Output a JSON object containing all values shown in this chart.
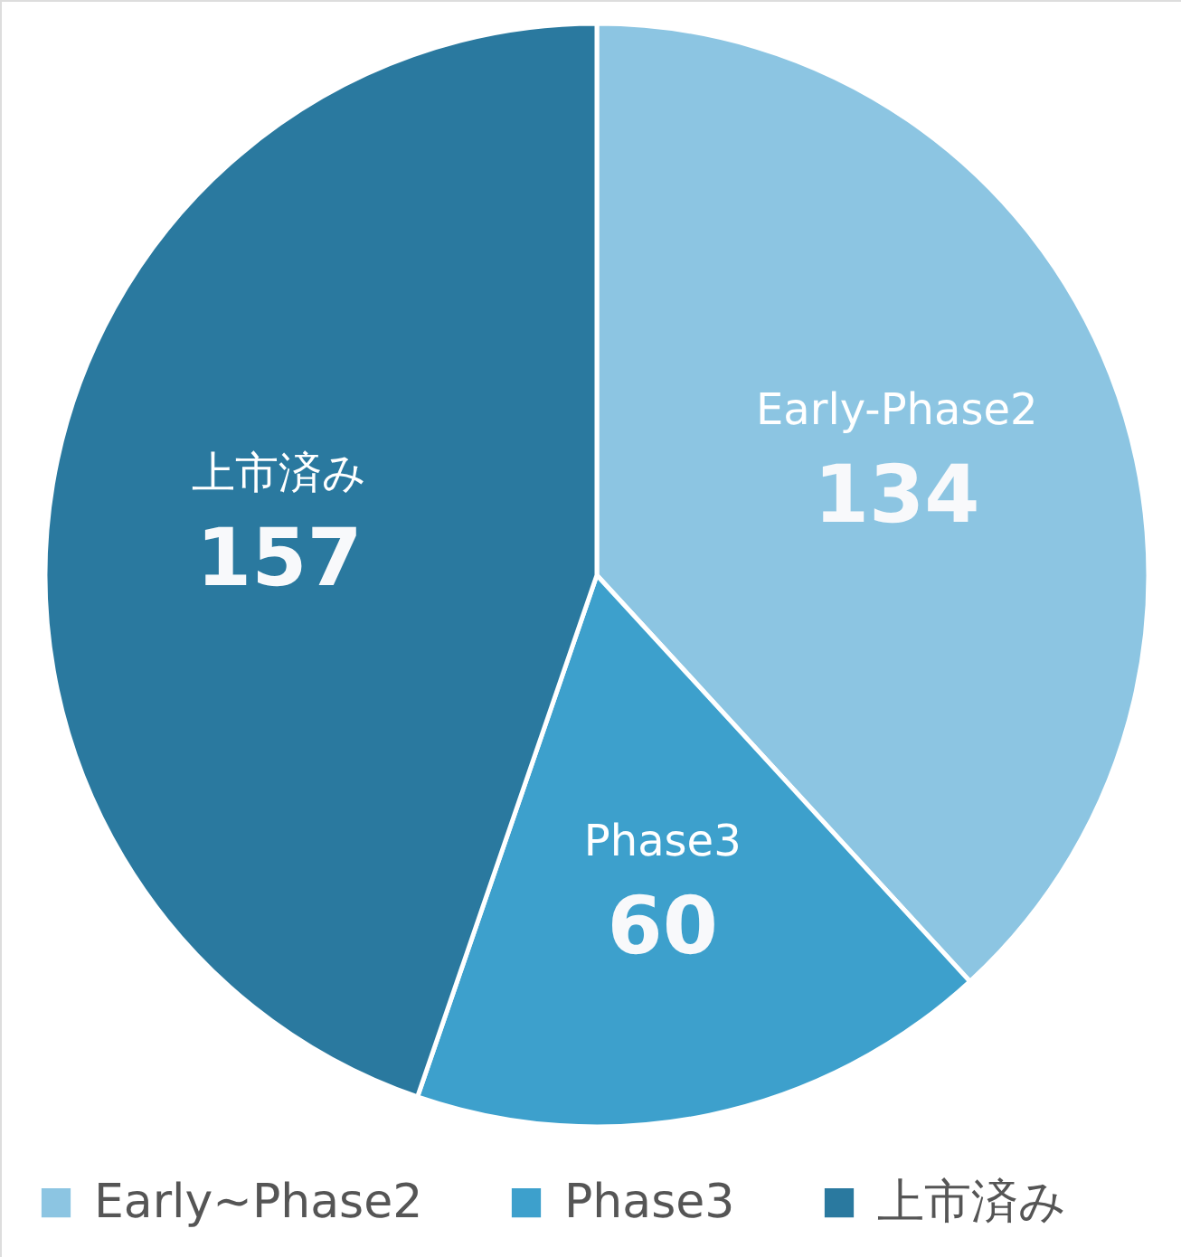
{
  "chart_data": {
    "type": "pie",
    "categories": [
      "Early~Phase2",
      "Phase3",
      "上市済み"
    ],
    "values": [
      134,
      60,
      157
    ],
    "colors": [
      "#8cc5e2",
      "#3da0cc",
      "#2a799f"
    ],
    "data_labels": true,
    "annotations": [
      "Early-Phase2",
      "Phase3",
      "上市済み"
    ],
    "legend": "bottom"
  }
}
